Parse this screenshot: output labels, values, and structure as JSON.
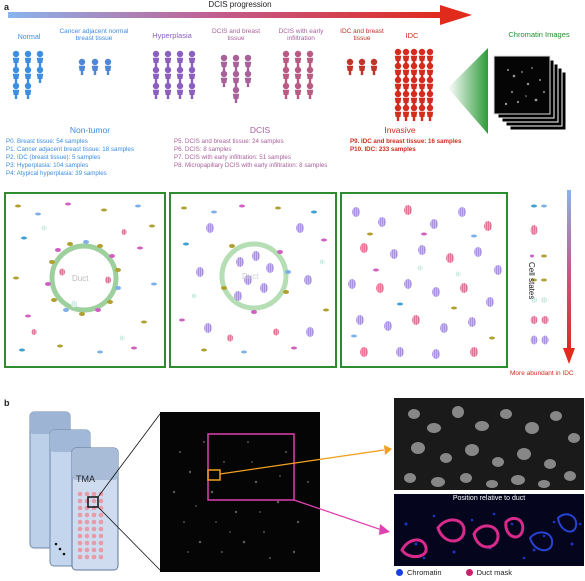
{
  "panel_a": {
    "letter": "a",
    "progression_label": "DCIS progression",
    "colors": {
      "arrow_start": "#6aa0e8",
      "arrow_end": "#e02a1c",
      "nontumor": "#3d8de0",
      "hyperplasia": "#8a5fc0",
      "dcis": "#a8609a",
      "invasive": "#d32b1e",
      "chromatin_green": "#1f8f2c",
      "frame_green": "#2e8b2e"
    },
    "stages": [
      {
        "label": "Normal"
      },
      {
        "label": "Cancer adjacent normal breast tissue"
      },
      {
        "label": "Hyperplasia"
      },
      {
        "label": "DCIS and breast tissue"
      },
      {
        "label": "DCIS with early infiltration"
      },
      {
        "label": "IDC and breast tissue"
      },
      {
        "label": "IDC"
      }
    ],
    "chromatin_images_label": "Chromatin Images",
    "groups": {
      "nontumor": {
        "title": "Non-tumor",
        "lines": [
          "P0. Breast tissue: 54 samples",
          "P1. Cancer adjacent breast tissue: 18 samples",
          "P2. IDC (breast tissue): 5 samples",
          "P3: Hyperplasia: 104 samples",
          "P4: Atypical hyperplasia: 39 samples"
        ]
      },
      "dcis": {
        "title": "DCIS",
        "lines": [
          "P5. DCIS and breast tissue: 24 samples",
          "P6. DCIS: 8 samples",
          "P7. DCIS with early infiltration: 51 samples",
          "P8. Micropapillary DCIS with early infiltration: 8 samples"
        ]
      },
      "invasive": {
        "title": "Invasive",
        "lines": [
          "P9. IDC and breast tissue: 16 samples",
          "P10. IDC: 233 samples"
        ]
      }
    },
    "duct_label_1": "Duct",
    "duct_label_2": "Duct",
    "cell_states_label": "Cell states",
    "more_abundant_label": "More abundant in IDC"
  },
  "panel_b": {
    "letter": "b",
    "tma_label": "TMA",
    "position_label": "Position relative to duct",
    "legend": [
      {
        "label": "Chromatin",
        "color": "#1a3fe0"
      },
      {
        "label": "Duct mask",
        "color": "#c8206a"
      }
    ],
    "colors": {
      "orange": "#f0a020",
      "magenta": "#e040b0"
    }
  }
}
